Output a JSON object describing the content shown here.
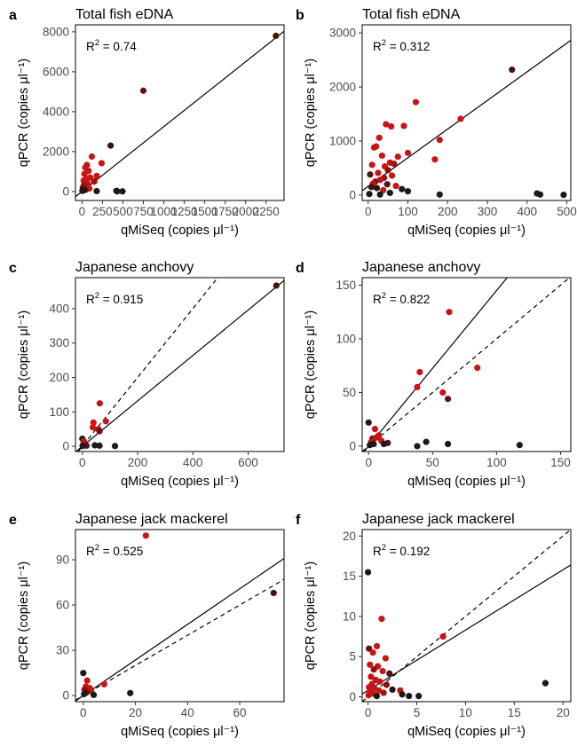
{
  "chart_data": [
    {
      "id": "a",
      "type": "scatter",
      "title": "Total fish eDNA",
      "xlabel": "qMiSeq (copies μl⁻¹)",
      "ylabel": "qPCR (copies μl⁻¹)",
      "r2_label": "R",
      "r2_value": " = 0.74",
      "xlim": [
        -80,
        2470
      ],
      "ylim": [
        -450,
        8350
      ],
      "xticks": [
        0,
        250,
        500,
        750,
        1000,
        1250,
        1500,
        1750,
        2000,
        2250
      ],
      "yticks": [
        0,
        2000,
        4000,
        6000,
        8000
      ],
      "fit_line": {
        "slope": 3.25,
        "intercept": 0,
        "x_range": [
          -80,
          2470
        ]
      },
      "one_to_one": false,
      "points": [
        {
          "x": 2370,
          "y": 7800,
          "c": "#4a1208"
        },
        {
          "x": 750,
          "y": 5050,
          "c": "#6b0d0d"
        },
        {
          "x": 350,
          "y": 2300,
          "c": "#3a1210"
        },
        {
          "x": 120,
          "y": 1750,
          "c": "#c81414"
        },
        {
          "x": 240,
          "y": 1420,
          "c": "#c81414"
        },
        {
          "x": 60,
          "y": 1330,
          "c": "#c81414"
        },
        {
          "x": 40,
          "y": 1200,
          "c": "#c81414"
        },
        {
          "x": 80,
          "y": 1030,
          "c": "#c81414"
        },
        {
          "x": 30,
          "y": 880,
          "c": "#c81414"
        },
        {
          "x": 180,
          "y": 780,
          "c": "#c81414"
        },
        {
          "x": 100,
          "y": 700,
          "c": "#c81414"
        },
        {
          "x": 55,
          "y": 620,
          "c": "#c81414"
        },
        {
          "x": 20,
          "y": 550,
          "c": "#c81414"
        },
        {
          "x": 150,
          "y": 500,
          "c": "#a01010"
        },
        {
          "x": 70,
          "y": 400,
          "c": "#c81414"
        },
        {
          "x": 25,
          "y": 320,
          "c": "#a01010"
        },
        {
          "x": 10,
          "y": 200,
          "c": "#8b0f0f"
        },
        {
          "x": 90,
          "y": 150,
          "c": "#c81414"
        },
        {
          "x": 40,
          "y": 80,
          "c": "#5a1010"
        },
        {
          "x": 5,
          "y": 30,
          "c": "#1a1a1a"
        },
        {
          "x": 180,
          "y": 20,
          "c": "#1a1a1a"
        },
        {
          "x": 420,
          "y": 30,
          "c": "#1a1a1a"
        },
        {
          "x": 430,
          "y": 10,
          "c": "#1a1a1a"
        },
        {
          "x": 495,
          "y": 5,
          "c": "#1a1a1a"
        },
        {
          "x": 15,
          "y": 60,
          "c": "#1a1a1a"
        }
      ]
    },
    {
      "id": "b",
      "type": "scatter",
      "title": "Total fish eDNA",
      "xlabel": "qMiSeq (copies μl⁻¹)",
      "ylabel": "qPCR (copies μl⁻¹)",
      "r2_label": "R",
      "r2_value": " = 0.312",
      "xlim": [
        -15,
        510
      ],
      "ylim": [
        -100,
        3150
      ],
      "xticks": [
        0,
        100,
        200,
        300,
        400,
        500
      ],
      "yticks": [
        0,
        1000,
        2000,
        3000
      ],
      "fit_line": {
        "slope": 5.3,
        "intercept": 160,
        "x_range": [
          -15,
          510
        ]
      },
      "one_to_one": false,
      "points": [
        {
          "x": 362,
          "y": 2320,
          "c": "#4a1208"
        },
        {
          "x": 120,
          "y": 1720,
          "c": "#c81414"
        },
        {
          "x": 233,
          "y": 1410,
          "c": "#c81414"
        },
        {
          "x": 90,
          "y": 1280,
          "c": "#c81414"
        },
        {
          "x": 45,
          "y": 1310,
          "c": "#c81414"
        },
        {
          "x": 58,
          "y": 1270,
          "c": "#c81414"
        },
        {
          "x": 28,
          "y": 1060,
          "c": "#c81414"
        },
        {
          "x": 180,
          "y": 1020,
          "c": "#c81414"
        },
        {
          "x": 15,
          "y": 880,
          "c": "#c81414"
        },
        {
          "x": 20,
          "y": 900,
          "c": "#c81414"
        },
        {
          "x": 100,
          "y": 780,
          "c": "#c81414"
        },
        {
          "x": 35,
          "y": 730,
          "c": "#c81414"
        },
        {
          "x": 75,
          "y": 710,
          "c": "#c81414"
        },
        {
          "x": 168,
          "y": 660,
          "c": "#c81414"
        },
        {
          "x": 55,
          "y": 600,
          "c": "#c81414"
        },
        {
          "x": 65,
          "y": 580,
          "c": "#a01010"
        },
        {
          "x": 10,
          "y": 560,
          "c": "#c81414"
        },
        {
          "x": 42,
          "y": 530,
          "c": "#c81414"
        },
        {
          "x": 50,
          "y": 460,
          "c": "#8b0f0f"
        },
        {
          "x": 25,
          "y": 410,
          "c": "#c81414"
        },
        {
          "x": 5,
          "y": 380,
          "c": "#5a1010"
        },
        {
          "x": 60,
          "y": 360,
          "c": "#c81414"
        },
        {
          "x": 40,
          "y": 320,
          "c": "#a01010"
        },
        {
          "x": 30,
          "y": 280,
          "c": "#c81414"
        },
        {
          "x": 18,
          "y": 250,
          "c": "#8b0f0f"
        },
        {
          "x": 12,
          "y": 210,
          "c": "#c81414"
        },
        {
          "x": 48,
          "y": 200,
          "c": "#5a1010"
        },
        {
          "x": 70,
          "y": 170,
          "c": "#c81414"
        },
        {
          "x": 8,
          "y": 150,
          "c": "#3a1210"
        },
        {
          "x": 22,
          "y": 130,
          "c": "#1a1a1a"
        },
        {
          "x": 85,
          "y": 110,
          "c": "#1a1a1a"
        },
        {
          "x": 38,
          "y": 90,
          "c": "#c81414"
        },
        {
          "x": 100,
          "y": 70,
          "c": "#2b1a1a"
        },
        {
          "x": 3,
          "y": 20,
          "c": "#1a1a1a"
        },
        {
          "x": 30,
          "y": 10,
          "c": "#1a1a1a"
        },
        {
          "x": 180,
          "y": 10,
          "c": "#1a1a1a"
        },
        {
          "x": 425,
          "y": 30,
          "c": "#1a1a1a"
        },
        {
          "x": 433,
          "y": 10,
          "c": "#1a1a1a"
        },
        {
          "x": 492,
          "y": 5,
          "c": "#1a1a1a"
        },
        {
          "x": 55,
          "y": 40,
          "c": "#1a1a1a"
        }
      ]
    },
    {
      "id": "c",
      "type": "scatter",
      "title": "Japanese anchovy",
      "xlabel": "qMiSeq (copies μl⁻¹)",
      "ylabel": "qPCR (copies μl⁻¹)",
      "r2_label": "R",
      "r2_value": " = 0.915",
      "xlim": [
        -25,
        730
      ],
      "ylim": [
        -15,
        490
      ],
      "xticks": [
        0,
        200,
        400,
        600
      ],
      "yticks": [
        0,
        100,
        200,
        300,
        400
      ],
      "fit_line": {
        "slope": 0.66,
        "intercept": 0,
        "x_range": [
          -25,
          730
        ]
      },
      "one_to_one": true,
      "points": [
        {
          "x": 702,
          "y": 467,
          "c": "#4a1208"
        },
        {
          "x": 63,
          "y": 125,
          "c": "#c81414"
        },
        {
          "x": 85,
          "y": 73,
          "c": "#c81414"
        },
        {
          "x": 40,
          "y": 69,
          "c": "#c81414"
        },
        {
          "x": 38,
          "y": 55,
          "c": "#c81414"
        },
        {
          "x": 58,
          "y": 50,
          "c": "#c81414"
        },
        {
          "x": 62,
          "y": 44,
          "c": "#6b1010"
        },
        {
          "x": 0,
          "y": 22,
          "c": "#1a1a1a"
        },
        {
          "x": 5,
          "y": 15,
          "c": "#c81414"
        },
        {
          "x": 8,
          "y": 10,
          "c": "#c81414"
        },
        {
          "x": 3,
          "y": 5,
          "c": "#8b0f0f"
        },
        {
          "x": 10,
          "y": 4,
          "c": "#c81414"
        },
        {
          "x": 15,
          "y": 2,
          "c": "#5a1010"
        },
        {
          "x": 1,
          "y": 1,
          "c": "#1a1a1a"
        },
        {
          "x": 45,
          "y": 3,
          "c": "#1a1a1a"
        },
        {
          "x": 62,
          "y": 2,
          "c": "#1a1a1a"
        },
        {
          "x": 118,
          "y": 1,
          "c": "#1a1a1a"
        }
      ]
    },
    {
      "id": "d",
      "type": "scatter",
      "title": "Japanese anchovy",
      "xlabel": "qMiSeq (copies μl⁻¹)",
      "ylabel": "qPCR (copies μl⁻¹)",
      "r2_label": "R",
      "r2_value": " = 0.822",
      "xlim": [
        -5,
        158
      ],
      "ylim": [
        -5,
        157
      ],
      "xticks": [
        0,
        50,
        100,
        150
      ],
      "yticks": [
        0,
        50,
        100,
        150
      ],
      "fit_line": {
        "slope": 1.45,
        "intercept": 0,
        "x_range": [
          -5,
          158
        ]
      },
      "one_to_one": true,
      "points": [
        {
          "x": 63,
          "y": 125,
          "c": "#c81414"
        },
        {
          "x": 85,
          "y": 73,
          "c": "#c81414"
        },
        {
          "x": 40,
          "y": 69,
          "c": "#c81414"
        },
        {
          "x": 38,
          "y": 55,
          "c": "#c81414"
        },
        {
          "x": 58,
          "y": 50,
          "c": "#c81414"
        },
        {
          "x": 62,
          "y": 44,
          "c": "#6b1010"
        },
        {
          "x": 0,
          "y": 22,
          "c": "#1a1a1a"
        },
        {
          "x": 5,
          "y": 16,
          "c": "#c81414"
        },
        {
          "x": 8,
          "y": 10,
          "c": "#c81414"
        },
        {
          "x": 3,
          "y": 7,
          "c": "#8b0f0f"
        },
        {
          "x": 10,
          "y": 5,
          "c": "#c81414"
        },
        {
          "x": 2,
          "y": 4,
          "c": "#c81414"
        },
        {
          "x": 15,
          "y": 3,
          "c": "#5a1010"
        },
        {
          "x": 4,
          "y": 2,
          "c": "#1a1a1a"
        },
        {
          "x": 1,
          "y": 1,
          "c": "#1a1a1a"
        },
        {
          "x": 6,
          "y": 8,
          "c": "#c81414"
        },
        {
          "x": 12,
          "y": 2,
          "c": "#1a1a1a"
        },
        {
          "x": 38,
          "y": 0,
          "c": "#1a1a1a"
        },
        {
          "x": 45,
          "y": 4,
          "c": "#1a1a1a"
        },
        {
          "x": 62,
          "y": 2,
          "c": "#1a1a1a"
        },
        {
          "x": 118,
          "y": 1,
          "c": "#1a1a1a"
        }
      ]
    },
    {
      "id": "e",
      "type": "scatter",
      "title": "Japanese jack mackerel",
      "xlabel": "qMiSeq (copies μl⁻¹)",
      "ylabel": "qPCR (copies μl⁻¹)",
      "r2_label": "R",
      "r2_value": " = 0.525",
      "xlim": [
        -3,
        77
      ],
      "ylim": [
        -4,
        110
      ],
      "xticks": [
        0,
        20,
        40,
        60
      ],
      "yticks": [
        0,
        30,
        60,
        90
      ],
      "fit_line": {
        "slope": 1.18,
        "intercept": 0,
        "x_range": [
          -3,
          77
        ]
      },
      "one_to_one": true,
      "points": [
        {
          "x": 24,
          "y": 106,
          "c": "#c81414"
        },
        {
          "x": 73,
          "y": 68,
          "c": "#4a1208"
        },
        {
          "x": 0,
          "y": 15,
          "c": "#1a1a1a"
        },
        {
          "x": 1.5,
          "y": 10,
          "c": "#c81414"
        },
        {
          "x": 8,
          "y": 7.5,
          "c": "#c81414"
        },
        {
          "x": 1,
          "y": 6,
          "c": "#c81414"
        },
        {
          "x": 2.5,
          "y": 5,
          "c": "#c81414"
        },
        {
          "x": 0.5,
          "y": 4,
          "c": "#8b0f0f"
        },
        {
          "x": 3,
          "y": 3,
          "c": "#c81414"
        },
        {
          "x": 1.2,
          "y": 2,
          "c": "#5a1010"
        },
        {
          "x": 0.3,
          "y": 1,
          "c": "#1a1a1a"
        },
        {
          "x": 4,
          "y": 0.5,
          "c": "#1a1a1a"
        },
        {
          "x": 18,
          "y": 1.7,
          "c": "#1a1a1a"
        }
      ]
    },
    {
      "id": "f",
      "type": "scatter",
      "title": "Japanese jack mackerel",
      "xlabel": "qMiSeq (copies μl⁻¹)",
      "ylabel": "qPCR (copies μl⁻¹)",
      "r2_label": "R",
      "r2_value": " = 0.192",
      "xlim": [
        -0.6,
        20.8
      ],
      "ylim": [
        -0.6,
        20.8
      ],
      "xticks": [
        0,
        5,
        10,
        15,
        20
      ],
      "yticks": [
        0,
        5,
        10,
        15,
        20
      ],
      "fit_line": {
        "slope": 0.75,
        "intercept": 0.8,
        "x_range": [
          -0.6,
          20.8
        ]
      },
      "one_to_one": true,
      "points": [
        {
          "x": 0,
          "y": 15.5,
          "c": "#1a1a1a"
        },
        {
          "x": 1.4,
          "y": 9.7,
          "c": "#c81414"
        },
        {
          "x": 7.7,
          "y": 7.5,
          "c": "#c81414"
        },
        {
          "x": 0.9,
          "y": 6.3,
          "c": "#c81414"
        },
        {
          "x": 0.1,
          "y": 6.0,
          "c": "#6b1010"
        },
        {
          "x": 0.5,
          "y": 5.5,
          "c": "#c81414"
        },
        {
          "x": 1.8,
          "y": 4.8,
          "c": "#c81414"
        },
        {
          "x": 0.2,
          "y": 4.0,
          "c": "#c81414"
        },
        {
          "x": 1.0,
          "y": 3.8,
          "c": "#c81414"
        },
        {
          "x": 0.6,
          "y": 3.4,
          "c": "#8b0f0f"
        },
        {
          "x": 1.5,
          "y": 3.2,
          "c": "#c81414"
        },
        {
          "x": 2.2,
          "y": 2.9,
          "c": "#5a1010"
        },
        {
          "x": 0.3,
          "y": 2.5,
          "c": "#c81414"
        },
        {
          "x": 0.8,
          "y": 2.1,
          "c": "#c81414"
        },
        {
          "x": 1.2,
          "y": 1.9,
          "c": "#c81414"
        },
        {
          "x": 0.4,
          "y": 1.6,
          "c": "#c81414"
        },
        {
          "x": 1.9,
          "y": 1.5,
          "c": "#8b0f0f"
        },
        {
          "x": 0.1,
          "y": 1.2,
          "c": "#c81414"
        },
        {
          "x": 0.7,
          "y": 1.0,
          "c": "#c81414"
        },
        {
          "x": 1.1,
          "y": 0.8,
          "c": "#c81414"
        },
        {
          "x": 0.2,
          "y": 0.6,
          "c": "#c81414"
        },
        {
          "x": 1.6,
          "y": 0.5,
          "c": "#a01010"
        },
        {
          "x": 0.5,
          "y": 0.4,
          "c": "#c81414"
        },
        {
          "x": 0.05,
          "y": 0.2,
          "c": "#c81414"
        },
        {
          "x": 0.9,
          "y": 0.1,
          "c": "#1a1a1a"
        },
        {
          "x": 3.3,
          "y": 0.8,
          "c": "#c81414"
        },
        {
          "x": 3.5,
          "y": 0.3,
          "c": "#1a1a1a"
        },
        {
          "x": 4.2,
          "y": 0.1,
          "c": "#1a1a1a"
        },
        {
          "x": 5.2,
          "y": 0.1,
          "c": "#1a1a1a"
        },
        {
          "x": 18.2,
          "y": 1.7,
          "c": "#1a1a1a"
        },
        {
          "x": 2.5,
          "y": 0.9,
          "c": "#1a1a1a"
        }
      ]
    }
  ]
}
